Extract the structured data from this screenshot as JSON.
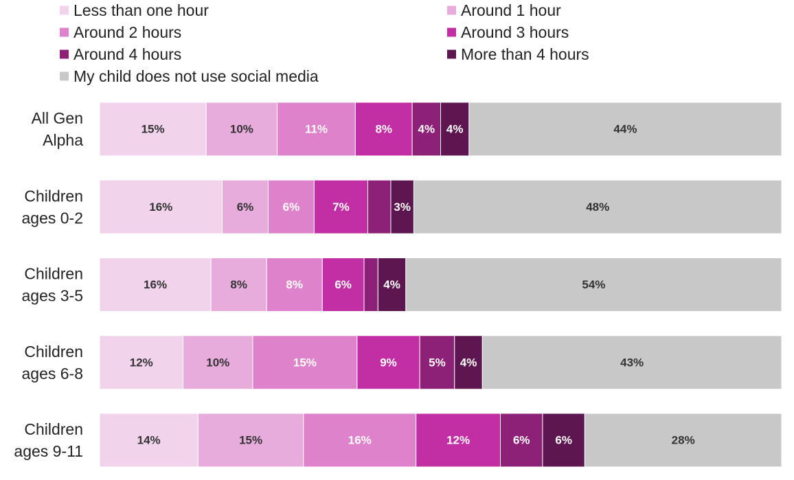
{
  "chart_data": {
    "type": "bar",
    "orientation": "horizontal",
    "stacked": true,
    "normalized": true,
    "legend_position": "top",
    "grid": false,
    "categories": [
      "All Gen Alpha",
      "Children ages 0-2",
      "Children ages 3-5",
      "Children ages 6-8",
      "Children ages 9-11"
    ],
    "category_lines": [
      [
        "All Gen",
        "Alpha"
      ],
      [
        "Children",
        "ages 0-2"
      ],
      [
        "Children",
        "ages 3-5"
      ],
      [
        "Children",
        "ages 6-8"
      ],
      [
        "Children",
        "ages 9-11"
      ]
    ],
    "series": [
      {
        "name": "Less than one hour",
        "color": "#f2d3ec",
        "label_color": "#333333",
        "values": [
          15,
          16,
          16,
          12,
          14
        ],
        "labels": [
          "15%",
          "16%",
          "16%",
          "12%",
          "14%"
        ]
      },
      {
        "name": "Around 1 hour",
        "color": "#e8acdc",
        "label_color": "#333333",
        "values": [
          10,
          6,
          8,
          10,
          15
        ],
        "labels": [
          "10%",
          "6%",
          "8%",
          "10%",
          "15%"
        ]
      },
      {
        "name": "Around 2 hours",
        "color": "#df82cc",
        "label_color": "#ffffff",
        "values": [
          11,
          6,
          8,
          15,
          16
        ],
        "labels": [
          "11%",
          "6%",
          "8%",
          "15%",
          "16%"
        ]
      },
      {
        "name": "Around 3 hours",
        "color": "#c22fa5",
        "label_color": "#ffffff",
        "values": [
          8,
          7,
          6,
          9,
          12
        ],
        "labels": [
          "8%",
          "7%",
          "6%",
          "9%",
          "12%"
        ]
      },
      {
        "name": "Around 4 hours",
        "color": "#8d2077",
        "label_color": "#ffffff",
        "values": [
          4,
          3,
          2,
          5,
          6
        ],
        "labels": [
          "4%",
          "",
          "",
          "5%",
          "6%"
        ]
      },
      {
        "name": "More than 4 hours",
        "color": "#5e1650",
        "label_color": "#ffffff",
        "values": [
          4,
          3,
          4,
          4,
          6
        ],
        "labels": [
          "4%",
          "3%",
          "4%",
          "4%",
          "6%"
        ]
      },
      {
        "name": "My child does not use social media",
        "color": "#c8c8c8",
        "label_color": "#333333",
        "values": [
          44,
          48,
          54,
          43,
          28
        ],
        "labels": [
          "44%",
          "48%",
          "54%",
          "43%",
          "28%"
        ]
      }
    ]
  }
}
